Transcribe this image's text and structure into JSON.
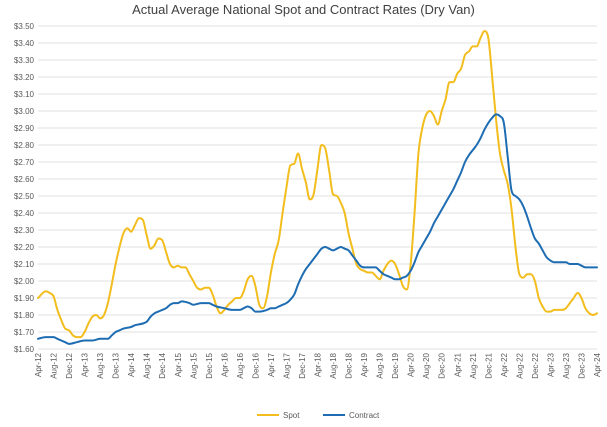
{
  "chart_data": {
    "type": "line",
    "title": "Actual Average National Spot and Contract Rates (Dry Van)",
    "xlabel": "",
    "ylabel": "",
    "ylim": [
      1.6,
      3.5
    ],
    "yticks": [
      "$1.60",
      "$1.70",
      "$1.80",
      "$1.90",
      "$2.00",
      "$2.10",
      "$2.20",
      "$2.30",
      "$2.40",
      "$2.50",
      "$2.60",
      "$2.70",
      "$2.80",
      "$2.90",
      "$3.00",
      "$3.10",
      "$3.20",
      "$3.30",
      "$3.40",
      "$3.50"
    ],
    "x_start": "Apr-12",
    "x_months": 145,
    "x_tick_step_months": 4,
    "xticks": [
      "Apr-12",
      "Aug-12",
      "Dec-12",
      "Apr-13",
      "Aug-13",
      "Dec-13",
      "Apr-14",
      "Aug-14",
      "Dec-14",
      "Apr-15",
      "Aug-15",
      "Dec-15",
      "Apr-16",
      "Aug-16",
      "Dec-16",
      "Apr-17",
      "Aug-17",
      "Dec-17",
      "Apr-18",
      "Aug-18",
      "Dec-18",
      "Apr-19",
      "Aug-19",
      "Dec-19",
      "Apr-20",
      "Aug-20",
      "Dec-20",
      "Apr-21",
      "Aug-21",
      "Dec-21",
      "Apr-22",
      "Aug-22",
      "Dec-22",
      "Apr-23",
      "Aug-23",
      "Dec-23",
      "Apr-24"
    ],
    "grid": true,
    "legend_position": "bottom",
    "series": [
      {
        "name": "Spot",
        "color": "#f2bd1d",
        "points": [
          [
            "Apr-12",
            1.9
          ],
          [
            "Jun-12",
            1.94
          ],
          [
            "Jul-12",
            1.93
          ],
          [
            "Aug-12",
            1.91
          ],
          [
            "Sep-12",
            1.83
          ],
          [
            "Oct-12",
            1.77
          ],
          [
            "Nov-12",
            1.72
          ],
          [
            "Dec-12",
            1.71
          ],
          [
            "Jan-13",
            1.68
          ],
          [
            "Feb-13",
            1.67
          ],
          [
            "Mar-13",
            1.67
          ],
          [
            "Apr-13",
            1.7
          ],
          [
            "May-13",
            1.75
          ],
          [
            "Jun-13",
            1.79
          ],
          [
            "Jul-13",
            1.8
          ],
          [
            "Aug-13",
            1.78
          ],
          [
            "Sep-13",
            1.8
          ],
          [
            "Oct-13",
            1.87
          ],
          [
            "Nov-13",
            1.98
          ],
          [
            "Dec-13",
            2.1
          ],
          [
            "Jan-14",
            2.2
          ],
          [
            "Feb-14",
            2.28
          ],
          [
            "Mar-14",
            2.31
          ],
          [
            "Apr-14",
            2.29
          ],
          [
            "May-14",
            2.33
          ],
          [
            "Jun-14",
            2.37
          ],
          [
            "Jul-14",
            2.36
          ],
          [
            "Aug-14",
            2.27
          ],
          [
            "Sep-14",
            2.19
          ],
          [
            "Oct-14",
            2.21
          ],
          [
            "Nov-14",
            2.25
          ],
          [
            "Dec-14",
            2.24
          ],
          [
            "Jan-15",
            2.17
          ],
          [
            "Feb-15",
            2.1
          ],
          [
            "Mar-15",
            2.08
          ],
          [
            "Apr-15",
            2.09
          ],
          [
            "May-15",
            2.08
          ],
          [
            "Jun-15",
            2.08
          ],
          [
            "Jul-15",
            2.04
          ],
          [
            "Aug-15",
            2.0
          ],
          [
            "Sep-15",
            1.96
          ],
          [
            "Oct-15",
            1.95
          ],
          [
            "Nov-15",
            1.96
          ],
          [
            "Dec-15",
            1.96
          ],
          [
            "Jan-16",
            1.92
          ],
          [
            "Feb-16",
            1.85
          ],
          [
            "Mar-16",
            1.81
          ],
          [
            "Apr-16",
            1.83
          ],
          [
            "May-16",
            1.86
          ],
          [
            "Jun-16",
            1.88
          ],
          [
            "Jul-16",
            1.9
          ],
          [
            "Aug-16",
            1.9
          ],
          [
            "Sep-16",
            1.94
          ],
          [
            "Oct-16",
            2.01
          ],
          [
            "Nov-16",
            2.03
          ],
          [
            "Dec-16",
            1.97
          ],
          [
            "Jan-17",
            1.86
          ],
          [
            "Feb-17",
            1.84
          ],
          [
            "Mar-17",
            1.91
          ],
          [
            "Apr-17",
            2.05
          ],
          [
            "May-17",
            2.16
          ],
          [
            "Jun-17",
            2.24
          ],
          [
            "Jul-17",
            2.4
          ],
          [
            "Aug-17",
            2.55
          ],
          [
            "Sep-17",
            2.68
          ],
          [
            "Oct-17",
            2.69
          ],
          [
            "Nov-17",
            2.75
          ],
          [
            "Dec-17",
            2.66
          ],
          [
            "Jan-18",
            2.58
          ],
          [
            "Feb-18",
            2.48
          ],
          [
            "Mar-18",
            2.51
          ],
          [
            "Apr-18",
            2.66
          ],
          [
            "May-18",
            2.8
          ],
          [
            "Jun-18",
            2.78
          ],
          [
            "Jul-18",
            2.65
          ],
          [
            "Aug-18",
            2.51
          ],
          [
            "Sep-18",
            2.5
          ],
          [
            "Oct-18",
            2.46
          ],
          [
            "Nov-18",
            2.4
          ],
          [
            "Dec-18",
            2.28
          ],
          [
            "Jan-19",
            2.19
          ],
          [
            "Feb-19",
            2.1
          ],
          [
            "Mar-19",
            2.07
          ],
          [
            "Apr-19",
            2.06
          ],
          [
            "May-19",
            2.05
          ],
          [
            "Jun-19",
            2.05
          ],
          [
            "Jul-19",
            2.03
          ],
          [
            "Aug-19",
            2.01
          ],
          [
            "Sep-19",
            2.06
          ],
          [
            "Oct-19",
            2.1
          ],
          [
            "Nov-19",
            2.12
          ],
          [
            "Dec-19",
            2.1
          ],
          [
            "Jan-20",
            2.04
          ],
          [
            "Feb-20",
            1.97
          ],
          [
            "Mar-20",
            1.95
          ],
          [
            "Apr-20",
            2.1
          ],
          [
            "May-20",
            2.4
          ],
          [
            "Jun-20",
            2.75
          ],
          [
            "Jul-20",
            2.9
          ],
          [
            "Aug-20",
            2.98
          ],
          [
            "Sep-20",
            3.0
          ],
          [
            "Oct-20",
            2.97
          ],
          [
            "Nov-20",
            2.92
          ],
          [
            "Dec-20",
            3.0
          ],
          [
            "Jan-21",
            3.07
          ],
          [
            "Feb-21",
            3.17
          ],
          [
            "Mar-21",
            3.17
          ],
          [
            "Apr-21",
            3.22
          ],
          [
            "May-21",
            3.25
          ],
          [
            "Jun-21",
            3.33
          ],
          [
            "Jul-21",
            3.35
          ],
          [
            "Aug-21",
            3.38
          ],
          [
            "Sep-21",
            3.38
          ],
          [
            "Oct-21",
            3.43
          ],
          [
            "Nov-21",
            3.47
          ],
          [
            "Dec-21",
            3.43
          ],
          [
            "Jan-22",
            3.2
          ],
          [
            "Feb-22",
            2.95
          ],
          [
            "Mar-22",
            2.75
          ],
          [
            "Apr-22",
            2.65
          ],
          [
            "May-22",
            2.57
          ],
          [
            "Jun-22",
            2.42
          ],
          [
            "Jul-22",
            2.2
          ],
          [
            "Aug-22",
            2.04
          ],
          [
            "Sep-22",
            2.02
          ],
          [
            "Oct-22",
            2.04
          ],
          [
            "Nov-22",
            2.04
          ],
          [
            "Dec-22",
            2.0
          ],
          [
            "Jan-23",
            1.9
          ],
          [
            "Feb-23",
            1.85
          ],
          [
            "Mar-23",
            1.82
          ],
          [
            "Apr-23",
            1.82
          ],
          [
            "May-23",
            1.83
          ],
          [
            "Jun-23",
            1.83
          ],
          [
            "Jul-23",
            1.83
          ],
          [
            "Aug-23",
            1.84
          ],
          [
            "Sep-23",
            1.87
          ],
          [
            "Oct-23",
            1.9
          ],
          [
            "Nov-23",
            1.93
          ],
          [
            "Dec-23",
            1.9
          ],
          [
            "Jan-24",
            1.84
          ],
          [
            "Feb-24",
            1.81
          ],
          [
            "Mar-24",
            1.8
          ],
          [
            "Apr-24",
            1.81
          ]
        ]
      },
      {
        "name": "Contract",
        "color": "#1e6db3",
        "points": [
          [
            "Apr-12",
            1.66
          ],
          [
            "Jun-12",
            1.67
          ],
          [
            "Aug-12",
            1.67
          ],
          [
            "Sep-12",
            1.66
          ],
          [
            "Oct-12",
            1.65
          ],
          [
            "Nov-12",
            1.64
          ],
          [
            "Dec-12",
            1.63
          ],
          [
            "Feb-13",
            1.64
          ],
          [
            "Apr-13",
            1.65
          ],
          [
            "Jun-13",
            1.65
          ],
          [
            "Aug-13",
            1.66
          ],
          [
            "Oct-13",
            1.66
          ],
          [
            "Nov-13",
            1.68
          ],
          [
            "Dec-13",
            1.7
          ],
          [
            "Jan-14",
            1.71
          ],
          [
            "Feb-14",
            1.72
          ],
          [
            "Apr-14",
            1.73
          ],
          [
            "May-14",
            1.74
          ],
          [
            "Jul-14",
            1.75
          ],
          [
            "Aug-14",
            1.76
          ],
          [
            "Sep-14",
            1.79
          ],
          [
            "Oct-14",
            1.81
          ],
          [
            "Nov-14",
            1.82
          ],
          [
            "Dec-14",
            1.83
          ],
          [
            "Jan-15",
            1.84
          ],
          [
            "Feb-15",
            1.86
          ],
          [
            "Mar-15",
            1.87
          ],
          [
            "Apr-15",
            1.87
          ],
          [
            "May-15",
            1.88
          ],
          [
            "Jul-15",
            1.87
          ],
          [
            "Aug-15",
            1.86
          ],
          [
            "Oct-15",
            1.87
          ],
          [
            "Nov-15",
            1.87
          ],
          [
            "Dec-15",
            1.87
          ],
          [
            "Jan-16",
            1.86
          ],
          [
            "Feb-16",
            1.85
          ],
          [
            "Apr-16",
            1.84
          ],
          [
            "Jun-16",
            1.83
          ],
          [
            "Aug-16",
            1.83
          ],
          [
            "Sep-16",
            1.84
          ],
          [
            "Oct-16",
            1.85
          ],
          [
            "Nov-16",
            1.84
          ],
          [
            "Dec-16",
            1.82
          ],
          [
            "Jan-17",
            1.82
          ],
          [
            "Mar-17",
            1.83
          ],
          [
            "Apr-17",
            1.84
          ],
          [
            "May-17",
            1.84
          ],
          [
            "Jun-17",
            1.85
          ],
          [
            "Jul-17",
            1.86
          ],
          [
            "Aug-17",
            1.87
          ],
          [
            "Sep-17",
            1.89
          ],
          [
            "Oct-17",
            1.92
          ],
          [
            "Nov-17",
            1.98
          ],
          [
            "Dec-17",
            2.03
          ],
          [
            "Jan-18",
            2.07
          ],
          [
            "Feb-18",
            2.1
          ],
          [
            "Mar-18",
            2.13
          ],
          [
            "Apr-18",
            2.16
          ],
          [
            "May-18",
            2.19
          ],
          [
            "Jun-18",
            2.2
          ],
          [
            "Jul-18",
            2.19
          ],
          [
            "Aug-18",
            2.18
          ],
          [
            "Sep-18",
            2.19
          ],
          [
            "Oct-18",
            2.2
          ],
          [
            "Nov-18",
            2.19
          ],
          [
            "Dec-18",
            2.18
          ],
          [
            "Jan-19",
            2.15
          ],
          [
            "Feb-19",
            2.12
          ],
          [
            "Mar-19",
            2.09
          ],
          [
            "Apr-19",
            2.08
          ],
          [
            "May-19",
            2.08
          ],
          [
            "Jun-19",
            2.08
          ],
          [
            "Jul-19",
            2.08
          ],
          [
            "Aug-19",
            2.06
          ],
          [
            "Sep-19",
            2.04
          ],
          [
            "Oct-19",
            2.03
          ],
          [
            "Nov-19",
            2.02
          ],
          [
            "Dec-19",
            2.01
          ],
          [
            "Jan-20",
            2.01
          ],
          [
            "Feb-20",
            2.02
          ],
          [
            "Mar-20",
            2.03
          ],
          [
            "Apr-20",
            2.06
          ],
          [
            "May-20",
            2.11
          ],
          [
            "Jun-20",
            2.17
          ],
          [
            "Jul-20",
            2.21
          ],
          [
            "Aug-20",
            2.25
          ],
          [
            "Sep-20",
            2.29
          ],
          [
            "Oct-20",
            2.34
          ],
          [
            "Nov-20",
            2.38
          ],
          [
            "Dec-20",
            2.42
          ],
          [
            "Jan-21",
            2.46
          ],
          [
            "Feb-21",
            2.5
          ],
          [
            "Mar-21",
            2.54
          ],
          [
            "Apr-21",
            2.59
          ],
          [
            "May-21",
            2.64
          ],
          [
            "Jun-21",
            2.7
          ],
          [
            "Jul-21",
            2.74
          ],
          [
            "Aug-21",
            2.77
          ],
          [
            "Sep-21",
            2.8
          ],
          [
            "Oct-21",
            2.84
          ],
          [
            "Nov-21",
            2.89
          ],
          [
            "Dec-21",
            2.93
          ],
          [
            "Jan-22",
            2.96
          ],
          [
            "Feb-22",
            2.98
          ],
          [
            "Mar-22",
            2.97
          ],
          [
            "Apr-22",
            2.93
          ],
          [
            "May-22",
            2.73
          ],
          [
            "Jun-22",
            2.53
          ],
          [
            "Jul-22",
            2.5
          ],
          [
            "Aug-22",
            2.48
          ],
          [
            "Sep-22",
            2.44
          ],
          [
            "Oct-22",
            2.38
          ],
          [
            "Nov-22",
            2.31
          ],
          [
            "Dec-22",
            2.25
          ],
          [
            "Jan-23",
            2.22
          ],
          [
            "Feb-23",
            2.18
          ],
          [
            "Mar-23",
            2.14
          ],
          [
            "Apr-23",
            2.12
          ],
          [
            "May-23",
            2.11
          ],
          [
            "Jun-23",
            2.11
          ],
          [
            "Jul-23",
            2.11
          ],
          [
            "Aug-23",
            2.11
          ],
          [
            "Sep-23",
            2.1
          ],
          [
            "Oct-23",
            2.1
          ],
          [
            "Nov-23",
            2.1
          ],
          [
            "Dec-23",
            2.09
          ],
          [
            "Jan-24",
            2.08
          ],
          [
            "Feb-24",
            2.08
          ],
          [
            "Mar-24",
            2.08
          ],
          [
            "Apr-24",
            2.08
          ]
        ]
      }
    ]
  }
}
